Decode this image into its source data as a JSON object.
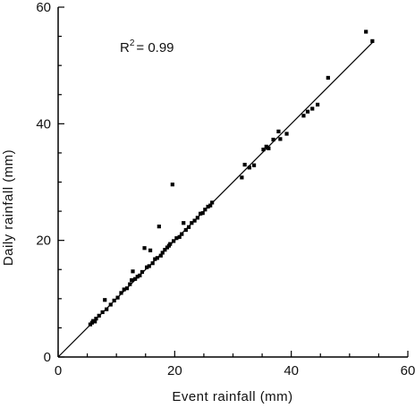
{
  "chart_data": {
    "type": "scatter",
    "title": "",
    "xlabel": "Event rainfall (mm)",
    "ylabel": "Daily rainfall (mm)",
    "xlim": [
      0,
      60
    ],
    "ylim": [
      0,
      60
    ],
    "xticks": [
      0,
      20,
      40,
      60
    ],
    "yticks": [
      0,
      20,
      40,
      60
    ],
    "xtick_labels": [
      "0",
      "20",
      "40",
      "60"
    ],
    "ytick_labels": [
      "0",
      "20",
      "40",
      "60"
    ],
    "grid": false,
    "annotation": {
      "r_label": "R",
      "r_sup": "2",
      "r_value": "=  0.99"
    },
    "fit_line": {
      "x": [
        0,
        54
      ],
      "y": [
        0,
        54
      ]
    },
    "points": [
      {
        "x": 5.5,
        "y": 5.6
      },
      {
        "x": 5.8,
        "y": 5.9
      },
      {
        "x": 6.0,
        "y": 6.2
      },
      {
        "x": 6.3,
        "y": 6.1
      },
      {
        "x": 6.5,
        "y": 6.6
      },
      {
        "x": 7.0,
        "y": 7.1
      },
      {
        "x": 7.6,
        "y": 7.7
      },
      {
        "x": 8.0,
        "y": 9.8
      },
      {
        "x": 8.3,
        "y": 8.2
      },
      {
        "x": 9.0,
        "y": 9.0
      },
      {
        "x": 9.6,
        "y": 9.7
      },
      {
        "x": 10.2,
        "y": 10.2
      },
      {
        "x": 10.8,
        "y": 11.0
      },
      {
        "x": 11.3,
        "y": 11.6
      },
      {
        "x": 11.8,
        "y": 11.8
      },
      {
        "x": 12.3,
        "y": 12.5
      },
      {
        "x": 12.6,
        "y": 13.2
      },
      {
        "x": 12.8,
        "y": 14.7
      },
      {
        "x": 13.2,
        "y": 13.4
      },
      {
        "x": 13.6,
        "y": 13.8
      },
      {
        "x": 14.0,
        "y": 14.0
      },
      {
        "x": 14.4,
        "y": 14.6
      },
      {
        "x": 14.8,
        "y": 18.7
      },
      {
        "x": 15.2,
        "y": 15.4
      },
      {
        "x": 15.6,
        "y": 15.6
      },
      {
        "x": 15.8,
        "y": 18.3
      },
      {
        "x": 16.2,
        "y": 16.1
      },
      {
        "x": 16.6,
        "y": 16.8
      },
      {
        "x": 17.0,
        "y": 17.0
      },
      {
        "x": 17.3,
        "y": 22.4
      },
      {
        "x": 17.6,
        "y": 17.4
      },
      {
        "x": 17.9,
        "y": 17.9
      },
      {
        "x": 18.3,
        "y": 18.4
      },
      {
        "x": 18.7,
        "y": 18.8
      },
      {
        "x": 19.0,
        "y": 19.1
      },
      {
        "x": 19.2,
        "y": 19.4
      },
      {
        "x": 19.6,
        "y": 29.6
      },
      {
        "x": 19.8,
        "y": 19.9
      },
      {
        "x": 20.3,
        "y": 20.4
      },
      {
        "x": 20.8,
        "y": 20.6
      },
      {
        "x": 21.2,
        "y": 21.1
      },
      {
        "x": 21.5,
        "y": 23.0
      },
      {
        "x": 21.9,
        "y": 21.8
      },
      {
        "x": 22.4,
        "y": 22.3
      },
      {
        "x": 22.9,
        "y": 23.0
      },
      {
        "x": 23.4,
        "y": 23.4
      },
      {
        "x": 23.9,
        "y": 23.9
      },
      {
        "x": 24.4,
        "y": 24.6
      },
      {
        "x": 24.8,
        "y": 24.7
      },
      {
        "x": 25.2,
        "y": 25.3
      },
      {
        "x": 25.7,
        "y": 25.8
      },
      {
        "x": 26.1,
        "y": 26.0
      },
      {
        "x": 26.4,
        "y": 26.5
      },
      {
        "x": 31.5,
        "y": 30.8
      },
      {
        "x": 32.0,
        "y": 33.0
      },
      {
        "x": 32.8,
        "y": 32.5
      },
      {
        "x": 33.6,
        "y": 32.9
      },
      {
        "x": 35.2,
        "y": 35.6
      },
      {
        "x": 35.7,
        "y": 36.1
      },
      {
        "x": 36.1,
        "y": 35.8
      },
      {
        "x": 36.9,
        "y": 37.3
      },
      {
        "x": 37.8,
        "y": 38.7
      },
      {
        "x": 38.1,
        "y": 37.4
      },
      {
        "x": 39.2,
        "y": 38.3
      },
      {
        "x": 42.1,
        "y": 41.4
      },
      {
        "x": 42.8,
        "y": 42.1
      },
      {
        "x": 43.6,
        "y": 42.6
      },
      {
        "x": 44.5,
        "y": 43.3
      },
      {
        "x": 46.3,
        "y": 47.9
      },
      {
        "x": 52.8,
        "y": 55.8
      },
      {
        "x": 53.9,
        "y": 54.2
      }
    ]
  }
}
